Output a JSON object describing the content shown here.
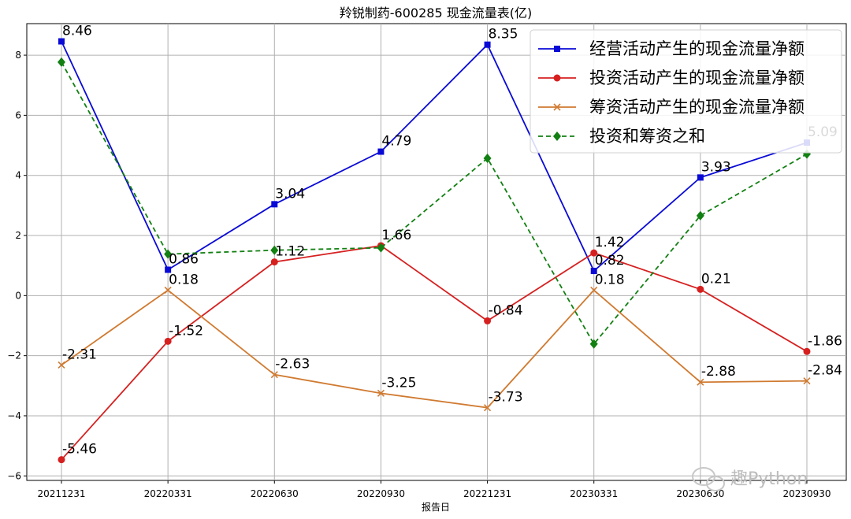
{
  "chart_data": {
    "type": "line",
    "title": "羚锐制药-600285 现金流量表(亿)",
    "xlabel": "报告日",
    "ylabel": "",
    "categories": [
      "20211231",
      "20220331",
      "20220630",
      "20220930",
      "20221231",
      "20230331",
      "20230630",
      "20230930"
    ],
    "ylim": [
      -6.15,
      9.05
    ],
    "yticks": [
      -6,
      -4,
      -2,
      0,
      2,
      4,
      6,
      8
    ],
    "ytick_labels": [
      "−6",
      "−4",
      "−2",
      "0",
      "2",
      "4",
      "6",
      "8"
    ],
    "grid": true,
    "legend_position": "top-right",
    "series": [
      {
        "name": "经营活动产生的现金流量净额",
        "color": "#0a0ad6",
        "marker": "square",
        "dashed": false,
        "values": [
          8.46,
          0.86,
          3.04,
          4.79,
          8.35,
          0.82,
          3.93,
          5.09
        ],
        "labels": [
          "8.46",
          "0.86",
          "3.04",
          "4.79",
          "8.35",
          "0.82",
          "3.93",
          "5.09"
        ]
      },
      {
        "name": "投资活动产生的现金流量净额",
        "color": "#d62020",
        "marker": "circle",
        "dashed": false,
        "values": [
          -5.46,
          -1.52,
          1.12,
          1.66,
          -0.84,
          1.42,
          0.21,
          -1.86
        ],
        "labels": [
          "-5.46",
          "-1.52",
          "1.12",
          "1.66",
          "-0.84",
          "1.42",
          "0.21",
          "-1.86"
        ]
      },
      {
        "name": "筹资活动产生的现金流量净额",
        "color": "#d07a30",
        "marker": "x",
        "dashed": false,
        "values": [
          -2.31,
          0.18,
          -2.63,
          -3.25,
          -3.73,
          0.18,
          -2.88,
          -2.84
        ],
        "labels": [
          "-2.31",
          "0.18",
          "-2.63",
          "-3.25",
          "-3.73",
          "0.18",
          "-2.88",
          "-2.84"
        ]
      },
      {
        "name": "投资和筹资之和",
        "color": "#128012",
        "marker": "diamond",
        "dashed": true,
        "values": [
          7.77,
          1.38,
          1.51,
          1.59,
          4.57,
          -1.61,
          2.66,
          4.71
        ],
        "labels": []
      }
    ]
  },
  "watermark": {
    "text": "趣Python",
    "icon": "wechat-icon"
  }
}
